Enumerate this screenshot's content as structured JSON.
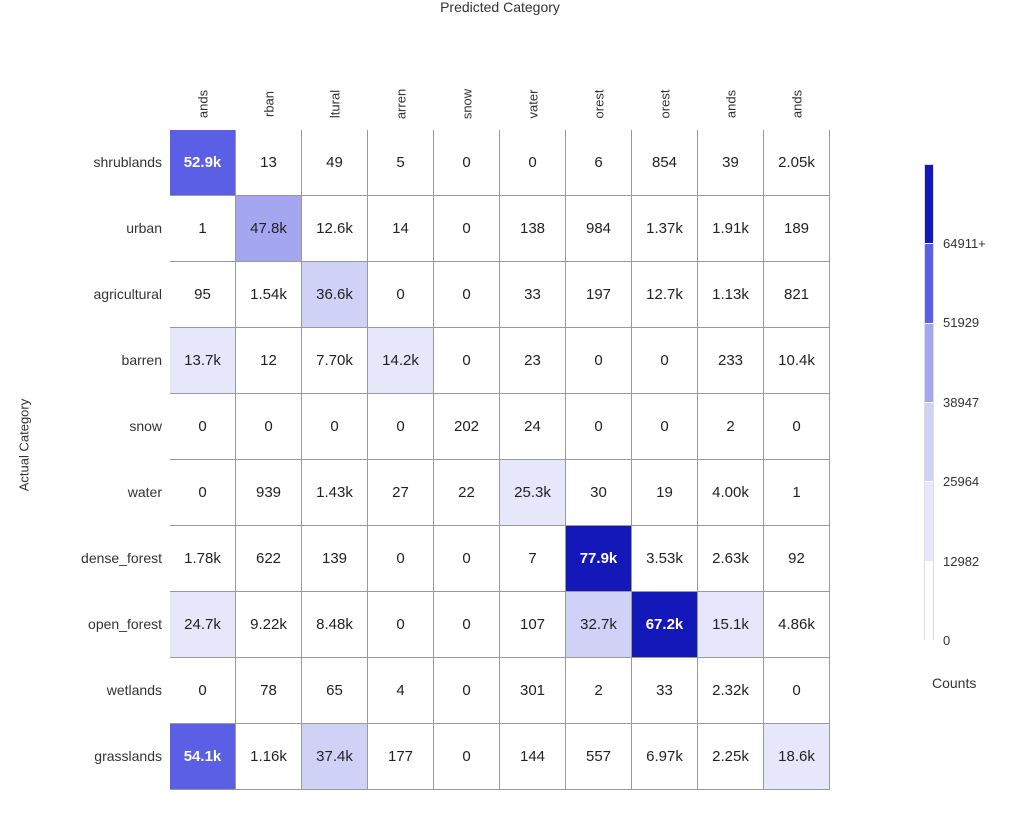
{
  "chart_data": {
    "type": "heatmap",
    "title": "Predicted Category",
    "xlabel": "Predicted Category",
    "ylabel": "Actual Category",
    "col_labels": [
      "ands",
      "rban",
      "ltural",
      "arren",
      "snow",
      "vater",
      "orest",
      "orest",
      "ands",
      "ands"
    ],
    "row_labels": [
      "shrublands",
      "urban",
      "agricultural",
      "barren",
      "snow",
      "water",
      "dense_forest",
      "open_forest",
      "wetlands",
      "grasslands"
    ],
    "values": [
      [
        52900,
        13,
        49,
        5,
        0,
        0,
        6,
        854,
        39,
        2050
      ],
      [
        1,
        47800,
        12600,
        14,
        0,
        138,
        984,
        1370,
        1910,
        189
      ],
      [
        95,
        1540,
        36600,
        0,
        0,
        33,
        197,
        12700,
        1130,
        821
      ],
      [
        13700,
        12,
        7700,
        14200,
        0,
        23,
        0,
        0,
        233,
        10400
      ],
      [
        0,
        0,
        0,
        0,
        202,
        24,
        0,
        0,
        2,
        0
      ],
      [
        0,
        939,
        1430,
        27,
        22,
        25300,
        30,
        19,
        4000,
        1
      ],
      [
        1780,
        622,
        139,
        0,
        0,
        7,
        77900,
        3530,
        2630,
        92
      ],
      [
        24700,
        9220,
        8480,
        0,
        0,
        107,
        32700,
        67200,
        15100,
        4860
      ],
      [
        0,
        78,
        65,
        4,
        0,
        301,
        2,
        33,
        2320,
        0
      ],
      [
        54100,
        1160,
        37400,
        177,
        0,
        144,
        557,
        6970,
        2250,
        18600
      ]
    ],
    "labels": [
      [
        "52.9k",
        "13",
        "49",
        "5",
        "0",
        "0",
        "6",
        "854",
        "39",
        "2.05k"
      ],
      [
        "1",
        "47.8k",
        "12.6k",
        "14",
        "0",
        "138",
        "984",
        "1.37k",
        "1.91k",
        "189"
      ],
      [
        "95",
        "1.54k",
        "36.6k",
        "0",
        "0",
        "33",
        "197",
        "12.7k",
        "1.13k",
        "821"
      ],
      [
        "13.7k",
        "12",
        "7.70k",
        "14.2k",
        "0",
        "23",
        "0",
        "0",
        "233",
        "10.4k"
      ],
      [
        "0",
        "0",
        "0",
        "0",
        "202",
        "24",
        "0",
        "0",
        "2",
        "0"
      ],
      [
        "0",
        "939",
        "1.43k",
        "27",
        "22",
        "25.3k",
        "30",
        "19",
        "4.00k",
        "1"
      ],
      [
        "1.78k",
        "622",
        "139",
        "0",
        "0",
        "7",
        "77.9k",
        "3.53k",
        "2.63k",
        "92"
      ],
      [
        "24.7k",
        "9.22k",
        "8.48k",
        "0",
        "0",
        "107",
        "32.7k",
        "67.2k",
        "15.1k",
        "4.86k"
      ],
      [
        "0",
        "78",
        "65",
        "4",
        "0",
        "301",
        "2",
        "33",
        "2.32k",
        "0"
      ],
      [
        "54.1k",
        "1.16k",
        "37.4k",
        "177",
        "0",
        "144",
        "557",
        "6.97k",
        "2.25k",
        "18.6k"
      ]
    ],
    "colorbar": {
      "title": "Counts",
      "bounds": [
        0,
        12982,
        25964,
        38947,
        51929,
        64911
      ],
      "tick_labels": [
        "0",
        "12982",
        "25964",
        "38947",
        "51929",
        "64911+"
      ],
      "colors": [
        "#ffffff",
        "#e6e7fb",
        "#d0d1f7",
        "#a4a7f0",
        "#5b5fe6",
        "#1418b8"
      ]
    }
  }
}
